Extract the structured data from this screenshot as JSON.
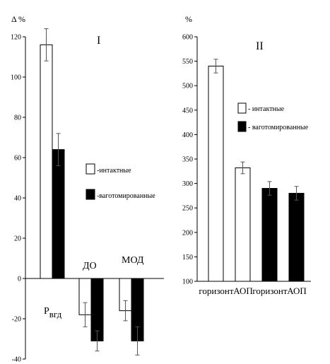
{
  "chart_data": [
    {
      "panel_label": "I",
      "type": "bar",
      "ylabel": "Δ %",
      "ylim": [
        -40,
        120
      ],
      "yticks": [
        -40,
        -20,
        0,
        20,
        40,
        60,
        80,
        100,
        120
      ],
      "categories": [
        "Рвгд",
        "ДО",
        "МОД"
      ],
      "category_main": [
        "Р",
        "ДО",
        "МОД"
      ],
      "category_sub": [
        "вгд",
        "",
        ""
      ],
      "series": [
        {
          "name": "-интактные",
          "fill": "#ffffff",
          "values": [
            116,
            -18,
            -16
          ],
          "errors": [
            8,
            6,
            5
          ]
        },
        {
          "name": "-ваготомированные",
          "fill": "#000000",
          "values": [
            64,
            -31,
            -31
          ],
          "errors": [
            8,
            5,
            7
          ]
        }
      ]
    },
    {
      "panel_label": "II",
      "type": "bar",
      "ylabel": "%",
      "ylim": [
        100,
        600
      ],
      "yticks": [
        100,
        150,
        200,
        250,
        300,
        350,
        400,
        450,
        500,
        550,
        600
      ],
      "categories": [
        "горизонт",
        "АОП",
        "горизонт",
        "АОП"
      ],
      "series": [
        {
          "name": "- интактные",
          "fill": "#ffffff",
          "values": [
            540,
            332,
            null,
            null
          ],
          "errors": [
            14,
            12,
            0,
            0
          ]
        },
        {
          "name": "- ваготомированные",
          "fill": "#000000",
          "values": [
            null,
            null,
            290,
            280
          ],
          "errors": [
            0,
            0,
            14,
            14
          ]
        }
      ]
    }
  ]
}
